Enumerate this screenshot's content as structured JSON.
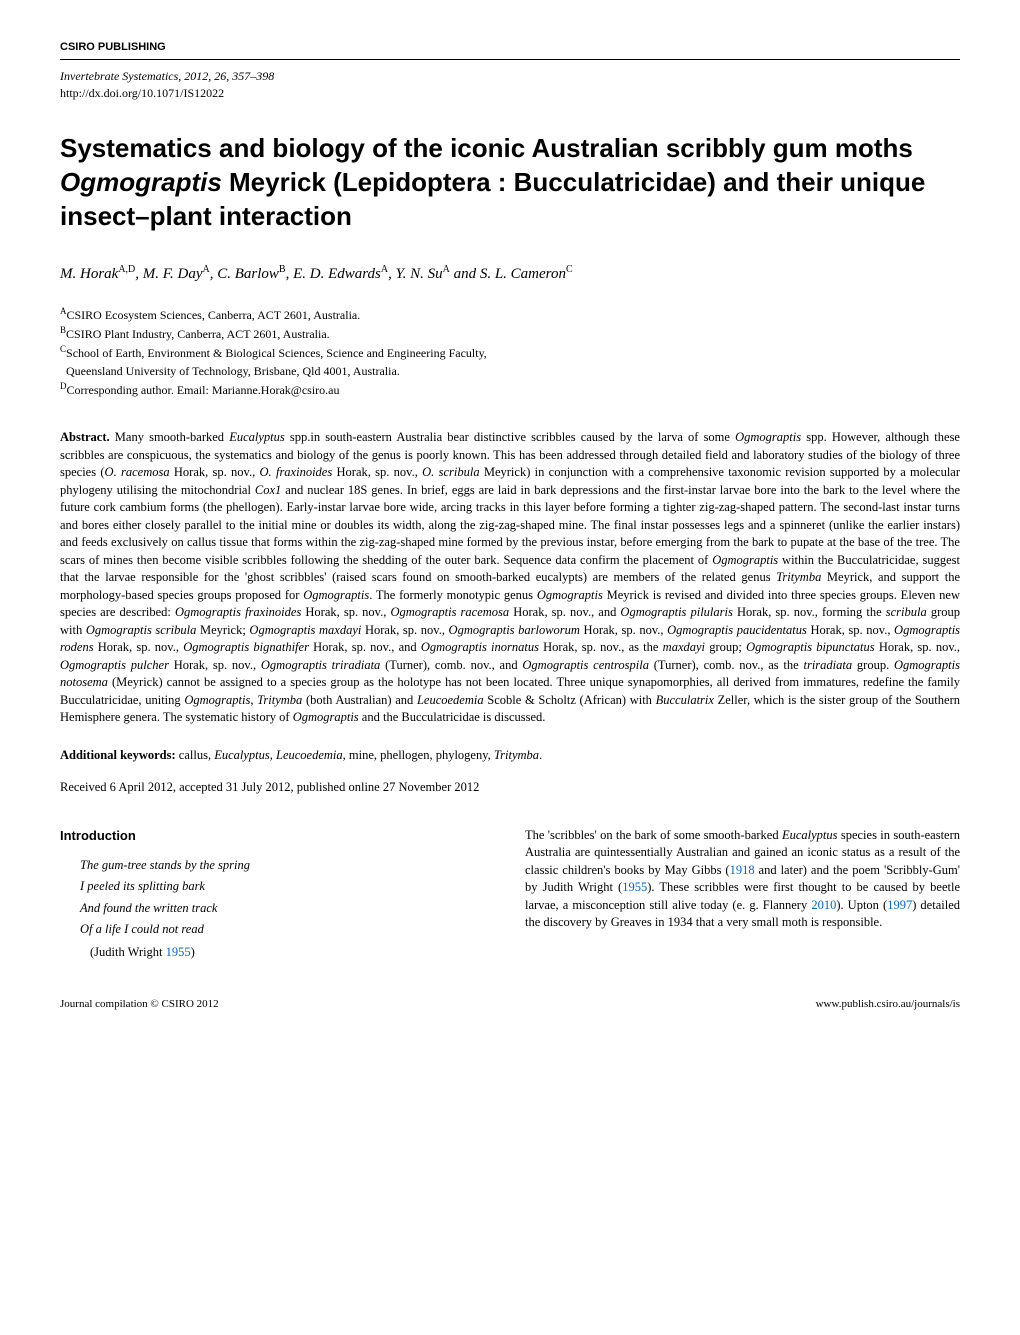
{
  "publisher": "CSIRO PUBLISHING",
  "journal_line": "Invertebrate Systematics, 2012, 26, 357–398",
  "doi": "http://dx.doi.org/10.1071/IS12022",
  "title_part1": "Systematics and biology of the iconic Australian scribbly gum moths ",
  "title_italic": "Ogmograptis",
  "title_part2": " Meyrick (Lepidoptera : Bucculatricidae) and their unique insect–plant interaction",
  "authors_html": "M. Horak<sup>A,D</sup>, M. F. Day<sup>A</sup>, C. Barlow<sup>B</sup>, E. D. Edwards<sup>A</sup>, Y. N. Su<sup>A</sup> and S. L. Cameron<sup>C</sup>",
  "affiliations": {
    "a": "CSIRO Ecosystem Sciences, Canberra, ACT 2601, Australia.",
    "b": "CSIRO Plant Industry, Canberra, ACT 2601, Australia.",
    "c1": "School of Earth, Environment & Biological Sciences, Science and Engineering Faculty,",
    "c2": "Queensland University of Technology, Brisbane, Qld 4001, Australia.",
    "d": "Corresponding author. Email: Marianne.Horak@csiro.au"
  },
  "abstract_label": "Abstract.",
  "abstract_text": "Many smooth-barked <span class=\"italic\">Eucalyptus</span> spp.in south-eastern Australia bear distinctive scribbles caused by the larva of some <span class=\"italic\">Ogmograptis</span> spp. However, although these scribbles are conspicuous, the systematics and biology of the genus is poorly known. This has been addressed through detailed field and laboratory studies of the biology of three species (<span class=\"italic\">O. racemosa</span> Horak, sp. nov., <span class=\"italic\">O. fraxinoides</span> Horak, sp. nov., <span class=\"italic\">O. scribula</span> Meyrick) in conjunction with a comprehensive taxonomic revision supported by a molecular phylogeny utilising the mitochondrial <span class=\"italic\">Cox1</span> and nuclear 18S genes. In brief, eggs are laid in bark depressions and the first-instar larvae bore into the bark to the level where the future cork cambium forms (the phellogen). Early-instar larvae bore wide, arcing tracks in this layer before forming a tighter zig-zag-shaped pattern. The second-last instar turns and bores either closely parallel to the initial mine or doubles its width, along the zig-zag-shaped mine. The final instar possesses legs and a spinneret (unlike the earlier instars) and feeds exclusively on callus tissue that forms within the zig-zag-shaped mine formed by the previous instar, before emerging from the bark to pupate at the base of the tree. The scars of mines then become visible scribbles following the shedding of the outer bark. Sequence data confirm the placement of <span class=\"italic\">Ogmograptis</span> within the Bucculatricidae, suggest that the larvae responsible for the 'ghost scribbles' (raised scars found on smooth-barked eucalypts) are members of the related genus <span class=\"italic\">Tritymba</span> Meyrick, and support the morphology-based species groups proposed for <span class=\"italic\">Ogmograptis</span>. The formerly monotypic genus <span class=\"italic\">Ogmograptis</span> Meyrick is revised and divided into three species groups. Eleven new species are described: <span class=\"italic\">Ogmograptis fraxinoides</span> Horak, sp. nov., <span class=\"italic\">Ogmograptis racemosa</span> Horak, sp. nov., and <span class=\"italic\">Ogmograptis pilularis</span> Horak, sp. nov., forming the <span class=\"italic\">scribula</span> group with <span class=\"italic\">Ogmograptis scribula</span> Meyrick; <span class=\"italic\">Ogmograptis maxdayi</span> Horak, sp. nov., <span class=\"italic\">Ogmograptis barloworum</span> Horak, sp. nov., <span class=\"italic\">Ogmograptis paucidentatus</span> Horak, sp. nov., <span class=\"italic\">Ogmograptis rodens</span> Horak, sp. nov., <span class=\"italic\">Ogmograptis bignathifer</span> Horak, sp. nov., and <span class=\"italic\">Ogmograptis inornatus</span> Horak, sp. nov., as the <span class=\"italic\">maxdayi</span> group; <span class=\"italic\">Ogmograptis bipunctatus</span> Horak, sp. nov., <span class=\"italic\">Ogmograptis pulcher</span> Horak, sp. nov., <span class=\"italic\">Ogmograptis triradiata</span> (Turner), comb. nov., and <span class=\"italic\">Ogmograptis centrospila</span> (Turner), comb. nov., as the <span class=\"italic\">triradiata</span> group. <span class=\"italic\">Ogmograptis notosema</span> (Meyrick) cannot be assigned to a species group as the holotype has not been located. Three unique synapomorphies, all derived from immatures, redefine the family Bucculatricidae, uniting <span class=\"italic\">Ogmograptis</span>, <span class=\"italic\">Tritymba</span> (both Australian) and <span class=\"italic\">Leucoedemia</span> Scoble & Scholtz (African) with <span class=\"italic\">Bucculatrix</span> Zeller, which is the sister group of the Southern Hemisphere genera. The systematic history of <span class=\"italic\">Ogmograptis</span> and the Bucculatricidae is discussed.",
  "keywords_label": "Additional keywords:",
  "keywords_text": "callus, <span class=\"italic\">Eucalyptus</span>, <span class=\"italic\">Leucoedemia</span>, mine, phellogen, phylogeny, <span class=\"italic\">Tritymba</span>.",
  "received": "Received 6 April 2012, accepted 31 July 2012, published online 27 November 2012",
  "intro_heading": "Introduction",
  "poem": {
    "line1": "The gum-tree stands by the spring",
    "line2": "I peeled its splitting bark",
    "line3": "And found the written track",
    "line4": "Of a life I could not read",
    "attrib": "(Judith Wright 1955)"
  },
  "body_right": "The 'scribbles' on the bark of some smooth-barked <span class=\"italic\">Eucalyptus</span> species in south-eastern Australia are quintessentially Australian and gained an iconic status as a result of the classic children's books by May Gibbs (<span class=\"link\">1918</span> and later) and the poem 'Scribbly-Gum' by Judith Wright (<span class=\"link\">1955</span>). These scribbles were first thought to be caused by beetle larvae, a misconception still alive today (e. g. Flannery <span class=\"link\">2010</span>). Upton (<span class=\"link\">1997</span>) detailed the discovery by Greaves in 1934 that a very small moth is responsible.",
  "footer_left": "Journal compilation © CSIRO 2012",
  "footer_right": "www.publish.csiro.au/journals/is"
}
